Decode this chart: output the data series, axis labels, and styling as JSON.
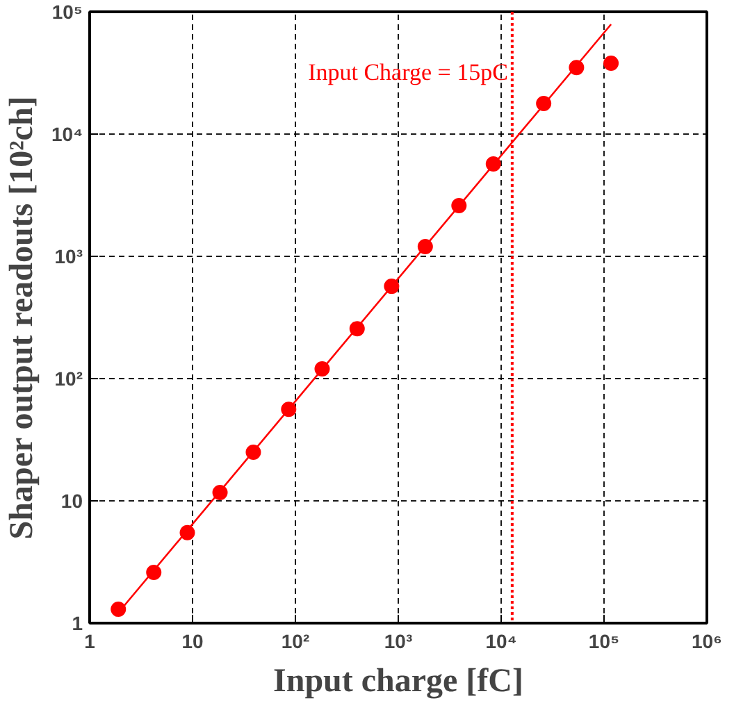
{
  "chart_data": {
    "type": "scatter",
    "xlabel": "Input charge [fC]",
    "ylabel": "Shaper output readouts [10²ch]",
    "log": "xy",
    "grid": true,
    "marker": "circle",
    "xlim": [
      1,
      1000000
    ],
    "ylim": [
      1,
      100000
    ],
    "xticks": [
      1,
      10,
      {
        "value": 100,
        "label": "10²"
      },
      {
        "value": 1000,
        "label": "10³"
      },
      {
        "value": 10000,
        "label": "10⁴"
      },
      {
        "value": 100000,
        "label": "10⁵"
      },
      {
        "value": 1000000,
        "label": "10⁶"
      }
    ],
    "yticks": [
      1,
      10,
      {
        "value": 100,
        "label": "10²"
      },
      {
        "value": 1000,
        "label": "10³"
      },
      {
        "value": 10000,
        "label": "10⁴"
      },
      {
        "value": 100000,
        "label": "10⁵"
      }
    ],
    "series": [
      {
        "color": "#ff0000",
        "x": [
          1.9,
          4.2,
          8.9,
          18.5,
          39,
          86,
          182,
          398,
          861,
          1830,
          3890,
          8400,
          25900,
          54000,
          117000
        ],
        "values": [
          1.3,
          2.6,
          5.5,
          11.7,
          25,
          56,
          120,
          256,
          569,
          1200,
          2600,
          5700,
          17800,
          35000,
          38000
        ]
      },
      {
        "type": "line",
        "color": "#ff0000",
        "marker": "none",
        "x": [
          1.78,
          117000
        ],
        "values": [
          1.14,
          79000
        ]
      }
    ],
    "ref_lines": [
      {
        "axis": "x",
        "value": 12800,
        "color": "#ff0000",
        "line_style": "dotted"
      }
    ],
    "annotations": [
      "Input Charge = 15pC"
    ]
  }
}
